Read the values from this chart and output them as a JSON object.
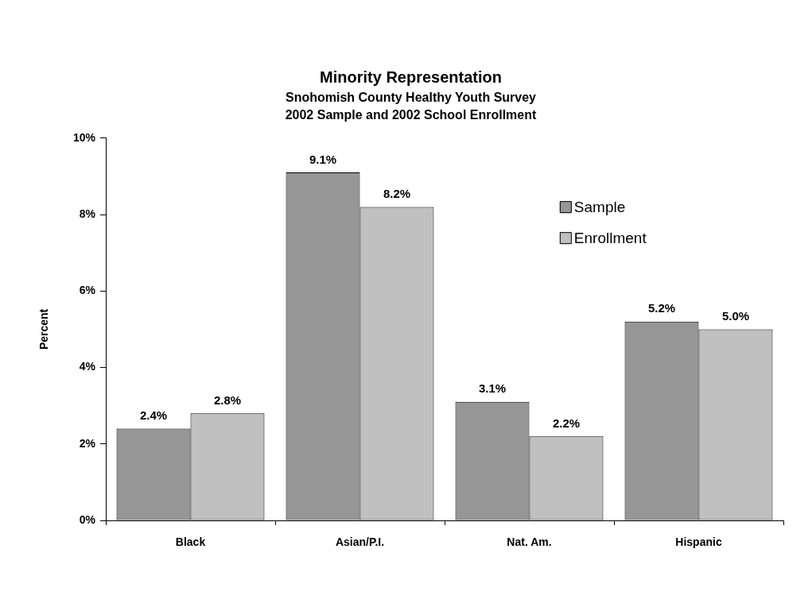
{
  "chart_data": {
    "type": "bar",
    "title": "Minority Representation",
    "subtitle": "Snohomish County Healthy Youth Survey\n2002 Sample and 2002 School Enrollment",
    "ylabel": "Percent",
    "categories": [
      "Black",
      "Asian/P.I.",
      "Nat. Am.",
      "Hispanic"
    ],
    "series": [
      {
        "name": "Sample",
        "color": "#969696",
        "values": [
          2.4,
          9.1,
          3.1,
          5.2
        ],
        "value_labels": [
          "2.4%",
          "9.1%",
          "3.1%",
          "5.2%"
        ]
      },
      {
        "name": "Enrollment",
        "color": "#c0c0c0",
        "values": [
          2.8,
          8.2,
          2.2,
          5.0
        ],
        "value_labels": [
          "2.8%",
          "8.2%",
          "2.2%",
          "5.0%"
        ]
      }
    ],
    "ylim": [
      0,
      10
    ],
    "yticks": [
      {
        "value": 0,
        "label": "0%"
      },
      {
        "value": 2,
        "label": "2%"
      },
      {
        "value": 4,
        "label": "4%"
      },
      {
        "value": 6,
        "label": "6%"
      },
      {
        "value": 8,
        "label": "8%"
      },
      {
        "value": 10,
        "label": "10%"
      }
    ],
    "legend": "top right"
  }
}
